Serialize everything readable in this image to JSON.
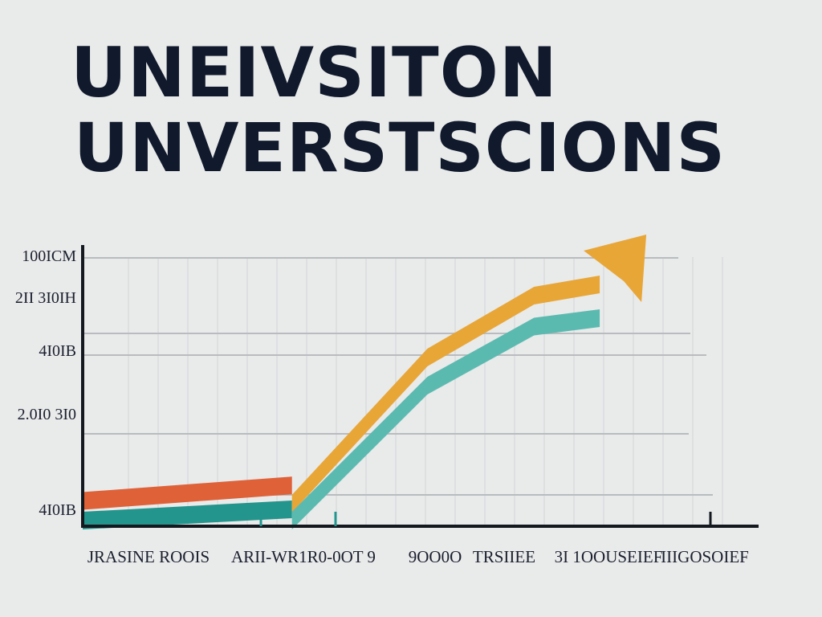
{
  "title_lines": [
    "UNEIVSITON",
    "UNVERSTSCIONS"
  ],
  "colors": {
    "background": "#e9eaea",
    "text": "#111a2c",
    "axis": "#14181f",
    "grid": "#b9bcbe",
    "gridMinor": "#d2d4d5",
    "series_orange": "#e8a637",
    "series_teal": "#5bbab0",
    "series_red": "#df6138",
    "series_darkteal": "#23958d"
  },
  "chart_data": {
    "type": "line",
    "title": "",
    "xlabel": "",
    "ylabel": "",
    "ylim": [
      0,
      1000
    ],
    "grid": true,
    "legend": "none",
    "yticks": [
      {
        "label": "100ICM",
        "value": 960
      },
      {
        "label": "2II 3I0IH",
        "value": 800
      },
      {
        "label": "4I0IB",
        "value": 630
      },
      {
        "label": "2.0I0 3I0",
        "value": 420
      },
      {
        "label": "4I0IB",
        "value": 65
      }
    ],
    "categories": [
      "JRASINE ROOIS",
      "ARII-WR",
      "1R0-0OT 9",
      "9OO0O",
      "TRSIIEE",
      "3I 1OOUSEIEF",
      "IIIGOSOIEF"
    ],
    "category_x": [
      0,
      1.3,
      2.6,
      3.9,
      5.1,
      6.2,
      7.3
    ],
    "x_range": [
      0,
      7.6
    ],
    "series": [
      {
        "key": "orange",
        "x": [
          2.55,
          4.2,
          5.5,
          6.3
        ],
        "y": [
          80,
          600,
          820,
          860
        ],
        "arrow": true
      },
      {
        "key": "teal",
        "x": [
          2.55,
          4.2,
          5.5,
          6.3
        ],
        "y": [
          20,
          500,
          710,
          740
        ]
      },
      {
        "key": "red",
        "x": [
          0,
          2.55
        ],
        "y": [
          90,
          145
        ]
      },
      {
        "key": "darkteal",
        "x": [
          0,
          2.55
        ],
        "y": [
          20,
          60
        ]
      }
    ]
  }
}
